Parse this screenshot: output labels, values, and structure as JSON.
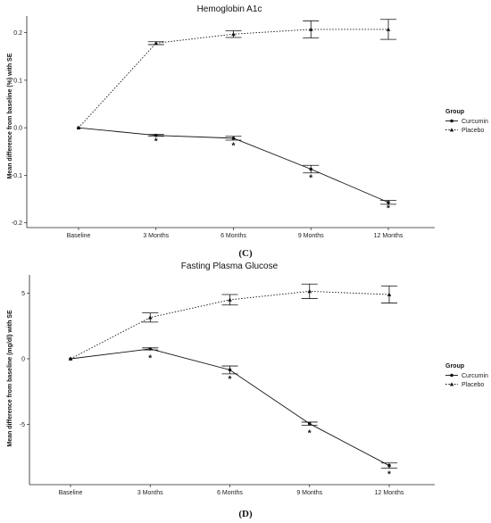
{
  "chart_data": [
    {
      "type": "line",
      "title": "Hemoglobin A1c",
      "panel_label": "(C)",
      "xlabel": "",
      "ylabel": "Mean difference from baseline (%) with SE",
      "categories": [
        "Baseline",
        "3 Months",
        "6 Months",
        "9 Months",
        "12 Months"
      ],
      "ylim": [
        -0.21,
        0.235
      ],
      "yticks": [
        -0.2,
        -0.1,
        0.0,
        0.1,
        0.2
      ],
      "ytick_labels": [
        "-0.2",
        "-0.1",
        "0.0",
        "0.1",
        "0.2"
      ],
      "grid": false,
      "legend": {
        "title": "Group",
        "placement": "right"
      },
      "series": [
        {
          "name": "Curcumin",
          "marker": "circle",
          "linestyle": "solid",
          "values": [
            0.0,
            -0.016,
            -0.022,
            -0.087,
            -0.157
          ],
          "se": [
            0.0,
            0.002,
            0.004,
            0.008,
            0.004
          ]
        },
        {
          "name": "Placebo",
          "marker": "triangle",
          "linestyle": "dotted",
          "values": [
            0.0,
            0.178,
            0.197,
            0.207,
            0.207
          ],
          "se": [
            0.0,
            0.003,
            0.007,
            0.018,
            0.021
          ]
        }
      ],
      "annotations": [
        {
          "category": "3 Months",
          "y": -0.027,
          "text": "*"
        },
        {
          "category": "6 Months",
          "y": -0.036,
          "text": "*"
        },
        {
          "category": "9 Months",
          "y": -0.104,
          "text": "*"
        },
        {
          "category": "12 Months",
          "y": -0.168,
          "text": "*"
        }
      ]
    },
    {
      "type": "line",
      "title": "Fasting Plasma Glucose",
      "panel_label": "(D)",
      "xlabel": "",
      "ylabel": "Mean difference from baseline (mg/dl) with SE",
      "categories": [
        "Baseline",
        "3 Months",
        "6 Months",
        "9 Months",
        "12 Months"
      ],
      "ylim": [
        -9.6,
        6.4
      ],
      "yticks": [
        -5,
        0,
        5
      ],
      "ytick_labels": [
        "-5",
        "0",
        "5"
      ],
      "grid": false,
      "legend": {
        "title": "Group",
        "placement": "right"
      },
      "series": [
        {
          "name": "Curcumin",
          "marker": "circle",
          "linestyle": "solid",
          "values": [
            0.0,
            0.75,
            -0.85,
            -4.95,
            -8.15
          ],
          "se": [
            0.0,
            0.08,
            0.3,
            0.12,
            0.2
          ]
        },
        {
          "name": "Placebo",
          "marker": "triangle",
          "linestyle": "dotted",
          "values": [
            0.0,
            3.15,
            4.5,
            5.15,
            4.9
          ],
          "se": [
            0.0,
            0.35,
            0.4,
            0.55,
            0.65
          ]
        }
      ],
      "annotations": [
        {
          "category": "3 Months",
          "y": 0.1,
          "text": "*"
        },
        {
          "category": "6 Months",
          "y": -1.5,
          "text": "*"
        },
        {
          "category": "9 Months",
          "y": -5.6,
          "text": "*"
        },
        {
          "category": "12 Months",
          "y": -8.75,
          "text": "*"
        }
      ]
    }
  ]
}
